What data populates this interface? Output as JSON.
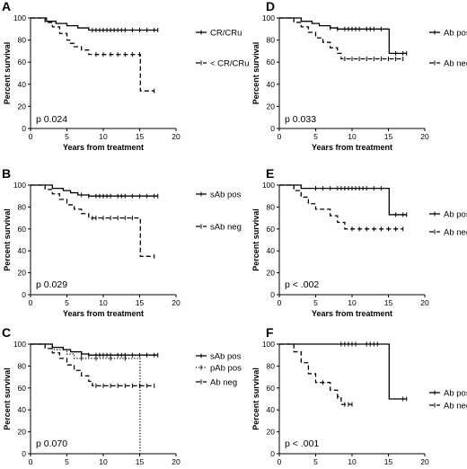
{
  "chart_data": [
    {
      "type": "line",
      "panel": "A",
      "xlabel": "Years from treatment",
      "ylabel": "Percent survival",
      "xlim": [
        0,
        20
      ],
      "ylim": [
        0,
        100
      ],
      "xticks": [
        "0",
        "5",
        "10",
        "15",
        "20"
      ],
      "yticks": [
        "0",
        "20",
        "40",
        "60",
        "80",
        "100"
      ],
      "annotation": "p 0.024",
      "series": [
        {
          "name": "CR/CRu",
          "style": "solid",
          "steps": [
            [
              0,
              100
            ],
            [
              2.2,
              97
            ],
            [
              3.5,
              95
            ],
            [
              5,
              93
            ],
            [
              6.5,
              91
            ],
            [
              8,
              89
            ],
            [
              17.5,
              89
            ]
          ],
          "censors": [
            8.5,
            9,
            9.5,
            10,
            10.5,
            11,
            11.5,
            12,
            12.5,
            13,
            14,
            15,
            16,
            17,
            17.5
          ]
        },
        {
          "name": "< CR/CRu",
          "style": "dashed",
          "steps": [
            [
              0,
              100
            ],
            [
              2,
              96
            ],
            [
              3,
              92
            ],
            [
              4,
              86
            ],
            [
              5,
              80
            ],
            [
              5.5,
              77
            ],
            [
              6,
              74
            ],
            [
              7,
              71
            ],
            [
              8,
              67
            ],
            [
              15,
              67
            ],
            [
              15.1,
              34
            ],
            [
              17,
              34
            ]
          ],
          "censors": [
            9,
            10,
            11,
            12,
            13,
            14,
            15,
            17
          ]
        }
      ]
    },
    {
      "type": "line",
      "panel": "B",
      "xlabel": "Years from treatment",
      "ylabel": "Percent survival",
      "xlim": [
        0,
        20
      ],
      "ylim": [
        0,
        100
      ],
      "xticks": [
        "0",
        "5",
        "10",
        "15",
        "20"
      ],
      "yticks": [
        "0",
        "20",
        "40",
        "60",
        "80",
        "100"
      ],
      "annotation": "p 0.029",
      "series": [
        {
          "name": "sAb pos",
          "style": "solid",
          "steps": [
            [
              0,
              100
            ],
            [
              3,
              97
            ],
            [
              4.5,
              95
            ],
            [
              5.5,
              93
            ],
            [
              6.5,
              91
            ],
            [
              8,
              90
            ],
            [
              17.5,
              90
            ]
          ],
          "censors": [
            7,
            8,
            9,
            9.5,
            10,
            10.5,
            11,
            12,
            12.5,
            13,
            14,
            15,
            16,
            17,
            17.5
          ]
        },
        {
          "name": "sAb neg",
          "style": "dashed",
          "steps": [
            [
              0,
              100
            ],
            [
              2,
              96
            ],
            [
              3,
              92
            ],
            [
              4,
              87
            ],
            [
              5,
              82
            ],
            [
              6,
              78
            ],
            [
              7,
              74
            ],
            [
              8,
              70
            ],
            [
              15,
              70
            ],
            [
              15.1,
              35
            ],
            [
              17,
              35
            ]
          ],
          "censors": [
            8.5,
            9,
            10,
            11,
            12,
            13,
            14,
            17
          ]
        }
      ]
    },
    {
      "type": "line",
      "panel": "C",
      "xlabel": "Years from treatment",
      "ylabel": "Percent survival",
      "xlim": [
        0,
        20
      ],
      "ylim": [
        0,
        100
      ],
      "xticks": [
        "0",
        "5",
        "10",
        "15",
        "20"
      ],
      "yticks": [
        "0",
        "20",
        "40",
        "60",
        "80",
        "100"
      ],
      "annotation": "p 0.070",
      "series": [
        {
          "name": "sAb pos",
          "style": "solid",
          "steps": [
            [
              0,
              100
            ],
            [
              3,
              97
            ],
            [
              4.5,
              95
            ],
            [
              5.5,
              93
            ],
            [
              7,
              91
            ],
            [
              8,
              90
            ],
            [
              17.5,
              90
            ]
          ],
          "censors": [
            7,
            8,
            9,
            9.5,
            10,
            10.5,
            11,
            12,
            12.5,
            13,
            14,
            15,
            16,
            17,
            17.5
          ]
        },
        {
          "name": "pAb pos",
          "style": "dotted",
          "steps": [
            [
              0,
              100
            ],
            [
              3,
              95
            ],
            [
              5,
              91
            ],
            [
              6,
              87
            ],
            [
              15,
              87
            ],
            [
              15.05,
              0
            ]
          ],
          "censors": [
            7,
            9,
            11,
            13
          ]
        },
        {
          "name": "Ab neg",
          "style": "dashed",
          "steps": [
            [
              0,
              100
            ],
            [
              2,
              96
            ],
            [
              3,
              92
            ],
            [
              4,
              87
            ],
            [
              5,
              81
            ],
            [
              6,
              76
            ],
            [
              7,
              71
            ],
            [
              8,
              66
            ],
            [
              8.5,
              62
            ],
            [
              17,
              62
            ]
          ],
          "censors": [
            9,
            10,
            11,
            12,
            13,
            14,
            15,
            16,
            17
          ]
        }
      ]
    },
    {
      "type": "line",
      "panel": "D",
      "xlabel": "Years from treatment",
      "ylabel": "Percent survival",
      "xlim": [
        0,
        20
      ],
      "ylim": [
        0,
        100
      ],
      "xticks": [
        "0",
        "5",
        "10",
        "15",
        "20"
      ],
      "yticks": [
        "0",
        "20",
        "40",
        "60",
        "80",
        "100"
      ],
      "annotation": "p 0.033",
      "series": [
        {
          "name": "Ab pos",
          "style": "solid",
          "steps": [
            [
              0,
              100
            ],
            [
              3,
              97
            ],
            [
              4.5,
              95
            ],
            [
              5.5,
              93
            ],
            [
              7,
              91
            ],
            [
              8,
              90
            ],
            [
              15,
              90
            ],
            [
              15.1,
              68
            ],
            [
              17.5,
              68
            ]
          ],
          "censors": [
            7,
            8,
            9,
            9.5,
            10,
            10.5,
            11,
            12,
            12.5,
            13,
            14,
            16,
            17,
            17.5
          ]
        },
        {
          "name": "Ab neg",
          "style": "dashed",
          "steps": [
            [
              0,
              100
            ],
            [
              2,
              96
            ],
            [
              3,
              92
            ],
            [
              4,
              87
            ],
            [
              5,
              82
            ],
            [
              6,
              78
            ],
            [
              7,
              73
            ],
            [
              8,
              68
            ],
            [
              8.5,
              63
            ],
            [
              17,
              63
            ]
          ],
          "censors": [
            9,
            10,
            11,
            12,
            13,
            14,
            15,
            16,
            17
          ]
        }
      ]
    },
    {
      "type": "line",
      "panel": "E",
      "xlabel": "Years from treatment",
      "ylabel": "Percent survival",
      "xlim": [
        0,
        20
      ],
      "ylim": [
        0,
        100
      ],
      "xticks": [
        "0",
        "5",
        "10",
        "15",
        "20"
      ],
      "yticks": [
        "0",
        "20",
        "40",
        "60",
        "80",
        "100"
      ],
      "annotation": "p < .002",
      "series": [
        {
          "name": "Ab pos",
          "style": "solid",
          "steps": [
            [
              0,
              100
            ],
            [
              3,
              97
            ],
            [
              15,
              97
            ],
            [
              15.1,
              73
            ],
            [
              17.5,
              73
            ]
          ],
          "censors": [
            5,
            6,
            7,
            8,
            8.5,
            9,
            9.5,
            10,
            10.5,
            11,
            11.5,
            12,
            13,
            14,
            16,
            17,
            17.5
          ]
        },
        {
          "name": "Ab neg",
          "style": "dashed",
          "steps": [
            [
              0,
              100
            ],
            [
              2,
              95
            ],
            [
              3,
              89
            ],
            [
              4,
              83
            ],
            [
              5,
              78
            ],
            [
              7,
              72
            ],
            [
              8,
              66
            ],
            [
              9,
              60
            ],
            [
              17,
              60
            ]
          ],
          "censors": [
            10,
            11,
            12,
            13,
            14,
            15,
            16,
            17
          ]
        }
      ]
    },
    {
      "type": "line",
      "panel": "F",
      "xlabel": "Years from treatment",
      "ylabel": "Percent survival",
      "xlim": [
        0,
        20
      ],
      "ylim": [
        0,
        100
      ],
      "xticks": [
        "0",
        "5",
        "10",
        "15",
        "20"
      ],
      "yticks": [
        "0",
        "20",
        "40",
        "60",
        "80",
        "100"
      ],
      "annotation": "p < .001",
      "series": [
        {
          "name": "Ab pos",
          "style": "solid",
          "steps": [
            [
              0,
              100
            ],
            [
              15,
              100
            ],
            [
              15.1,
              50
            ],
            [
              17.5,
              50
            ]
          ],
          "censors": [
            8.5,
            9,
            9.5,
            10,
            10.5,
            12,
            12.5,
            13,
            13.5,
            17,
            17.5
          ]
        },
        {
          "name": "Ab neg",
          "style": "dashed",
          "steps": [
            [
              0,
              100
            ],
            [
              2,
              93
            ],
            [
              3,
              83
            ],
            [
              4,
              73
            ],
            [
              5,
              65
            ],
            [
              7,
              58
            ],
            [
              8,
              52
            ],
            [
              8.5,
              45
            ],
            [
              10,
              45
            ]
          ],
          "censors": [
            6,
            8,
            9,
            9.5,
            10
          ]
        }
      ]
    }
  ]
}
